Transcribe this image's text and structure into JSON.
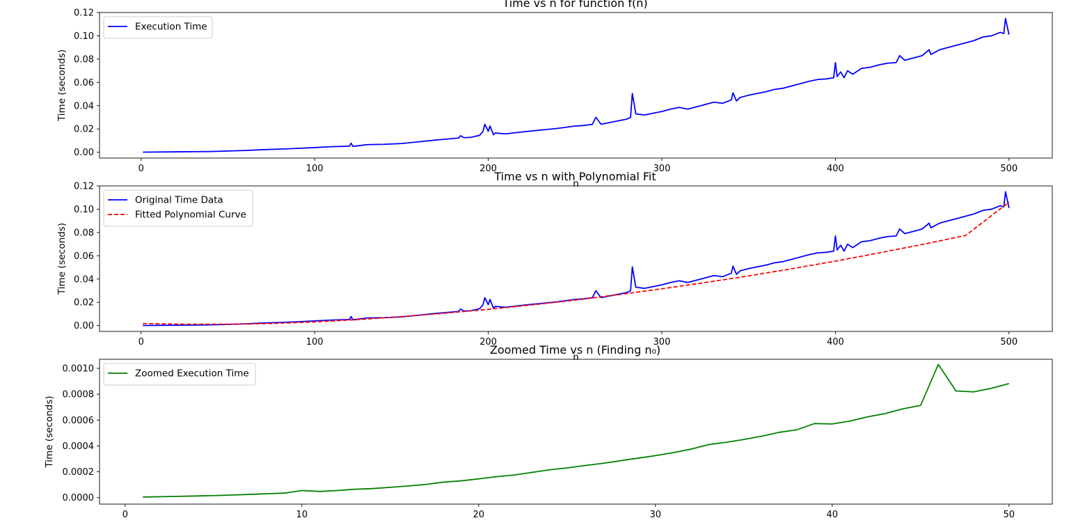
{
  "chart_data": [
    {
      "type": "line",
      "title": "Time vs n for function f(n)",
      "xlabel": "n",
      "ylabel": "Time (seconds)",
      "xlim": [
        -23.95,
        524.95
      ],
      "ylim": [
        -0.005,
        0.12
      ],
      "xticks": [
        0,
        100,
        200,
        300,
        400,
        500
      ],
      "yticks": [
        0.0,
        0.02,
        0.04,
        0.06,
        0.08,
        0.1,
        0.12
      ],
      "ytick_labels": [
        "0.00",
        "0.02",
        "0.04",
        "0.06",
        "0.08",
        "0.10",
        "0.12"
      ],
      "grid": false,
      "legend_position": "top-left",
      "series": [
        {
          "name": "Execution Time",
          "color": "#0000ff",
          "style": "solid",
          "x": [
            1,
            40,
            60,
            70,
            80,
            90,
            100,
            110,
            120,
            121,
            122,
            130,
            140,
            150,
            160,
            170,
            180,
            183,
            184,
            186,
            190,
            195,
            197,
            198,
            200,
            201,
            203,
            204,
            210,
            220,
            230,
            240,
            250,
            255,
            260,
            262,
            265,
            270,
            275,
            280,
            282,
            283,
            285,
            290,
            295,
            300,
            305,
            310,
            315,
            320,
            325,
            330,
            335,
            340,
            341,
            343,
            345,
            350,
            355,
            360,
            365,
            370,
            375,
            380,
            385,
            390,
            395,
            399,
            400,
            401,
            403,
            405,
            407,
            410,
            415,
            420,
            425,
            430,
            435,
            437,
            440,
            445,
            450,
            454,
            455,
            460,
            465,
            470,
            475,
            480,
            485,
            490,
            495,
            497,
            498,
            500
          ],
          "y": [
            0.0001,
            0.0006,
            0.0015,
            0.0022,
            0.0027,
            0.0033,
            0.004,
            0.0048,
            0.0052,
            0.0078,
            0.005,
            0.0065,
            0.0068,
            0.0075,
            0.009,
            0.0105,
            0.0118,
            0.0122,
            0.0142,
            0.0125,
            0.0128,
            0.0145,
            0.018,
            0.024,
            0.018,
            0.0225,
            0.015,
            0.0165,
            0.0158,
            0.0175,
            0.019,
            0.0205,
            0.0225,
            0.023,
            0.024,
            0.03,
            0.024,
            0.0255,
            0.027,
            0.0285,
            0.03,
            0.0505,
            0.033,
            0.032,
            0.0335,
            0.035,
            0.037,
            0.0385,
            0.037,
            0.039,
            0.041,
            0.043,
            0.042,
            0.045,
            0.051,
            0.044,
            0.047,
            0.049,
            0.0505,
            0.052,
            0.054,
            0.055,
            0.057,
            0.059,
            0.061,
            0.0625,
            0.063,
            0.064,
            0.077,
            0.065,
            0.069,
            0.064,
            0.07,
            0.067,
            0.072,
            0.073,
            0.075,
            0.0765,
            0.077,
            0.083,
            0.079,
            0.081,
            0.083,
            0.088,
            0.084,
            0.088,
            0.09,
            0.092,
            0.094,
            0.096,
            0.099,
            0.1,
            0.103,
            0.102,
            0.115,
            0.101
          ]
        }
      ]
    },
    {
      "type": "line",
      "title": "Time vs n with Polynomial Fit",
      "xlabel": "n",
      "ylabel": "Time (seconds)",
      "xlim": [
        -23.95,
        524.95
      ],
      "ylim": [
        -0.005,
        0.12
      ],
      "xticks": [
        0,
        100,
        200,
        300,
        400,
        500
      ],
      "yticks": [
        0.0,
        0.02,
        0.04,
        0.06,
        0.08,
        0.1,
        0.12
      ],
      "ytick_labels": [
        "0.00",
        "0.02",
        "0.04",
        "0.06",
        "0.08",
        "0.10",
        "0.12"
      ],
      "grid": false,
      "legend_position": "top-left",
      "series": [
        {
          "name": "Original Time Data",
          "color": "#0000ff",
          "style": "solid",
          "x": [
            1,
            40,
            60,
            70,
            80,
            90,
            100,
            110,
            120,
            121,
            122,
            130,
            140,
            150,
            160,
            170,
            180,
            183,
            184,
            186,
            190,
            195,
            197,
            198,
            200,
            201,
            203,
            204,
            210,
            220,
            230,
            240,
            250,
            255,
            260,
            262,
            265,
            270,
            275,
            280,
            282,
            283,
            285,
            290,
            295,
            300,
            305,
            310,
            315,
            320,
            325,
            330,
            335,
            340,
            341,
            343,
            345,
            350,
            355,
            360,
            365,
            370,
            375,
            380,
            385,
            390,
            395,
            399,
            400,
            401,
            403,
            405,
            407,
            410,
            415,
            420,
            425,
            430,
            435,
            437,
            440,
            445,
            450,
            454,
            455,
            460,
            465,
            470,
            475,
            480,
            485,
            490,
            495,
            497,
            498,
            500
          ],
          "y": [
            0.0001,
            0.0006,
            0.0015,
            0.0022,
            0.0027,
            0.0033,
            0.004,
            0.0048,
            0.0052,
            0.0078,
            0.005,
            0.0065,
            0.0068,
            0.0075,
            0.009,
            0.0105,
            0.0118,
            0.0122,
            0.0142,
            0.0125,
            0.0128,
            0.0145,
            0.018,
            0.024,
            0.018,
            0.0225,
            0.015,
            0.0165,
            0.0158,
            0.0175,
            0.019,
            0.0205,
            0.0225,
            0.023,
            0.024,
            0.03,
            0.024,
            0.0255,
            0.027,
            0.0285,
            0.03,
            0.0505,
            0.033,
            0.032,
            0.0335,
            0.035,
            0.037,
            0.0385,
            0.037,
            0.039,
            0.041,
            0.043,
            0.042,
            0.045,
            0.051,
            0.044,
            0.047,
            0.049,
            0.0505,
            0.052,
            0.054,
            0.055,
            0.057,
            0.059,
            0.061,
            0.0625,
            0.063,
            0.064,
            0.077,
            0.065,
            0.069,
            0.064,
            0.07,
            0.067,
            0.072,
            0.073,
            0.075,
            0.0765,
            0.077,
            0.083,
            0.079,
            0.081,
            0.083,
            0.088,
            0.084,
            0.088,
            0.09,
            0.092,
            0.094,
            0.096,
            0.099,
            0.1,
            0.103,
            0.102,
            0.115,
            0.101
          ]
        },
        {
          "name": "Fitted Polynomial Curve",
          "color": "#ff0000",
          "style": "dashed",
          "x": [
            1,
            25,
            50,
            75,
            100,
            125,
            150,
            175,
            200,
            225,
            250,
            275,
            300,
            325,
            350,
            375,
            400,
            425,
            450,
            475,
            500
          ],
          "y": [
            0.0018,
            0.0012,
            0.0012,
            0.0018,
            0.0032,
            0.0052,
            0.0077,
            0.0107,
            0.014,
            0.0178,
            0.0219,
            0.0266,
            0.0316,
            0.037,
            0.0427,
            0.0489,
            0.0554,
            0.0624,
            0.0697,
            0.0774,
            0.106
          ]
        }
      ]
    },
    {
      "type": "line",
      "title": "Zoomed Time vs n (Finding n₀)",
      "xlabel": "",
      "ylabel": "Time (seconds)",
      "xlim": [
        -1.45,
        52.45
      ],
      "ylim": [
        -5e-05,
        0.00107
      ],
      "xticks": [
        0,
        10,
        20,
        30,
        40,
        50
      ],
      "yticks": [
        0.0,
        0.0002,
        0.0004,
        0.0006,
        0.0008,
        0.001
      ],
      "ytick_labels": [
        "0.0000",
        "0.0002",
        "0.0004",
        "0.0006",
        "0.0008",
        "0.0010"
      ],
      "grid": false,
      "legend_position": "top-left",
      "series": [
        {
          "name": "Zoomed Execution Time",
          "color": "#008000",
          "style": "solid",
          "x": [
            1,
            2,
            3,
            4,
            5,
            6,
            7,
            8,
            9,
            10,
            11,
            12,
            13,
            14,
            15,
            16,
            17,
            18,
            19,
            20,
            21,
            22,
            23,
            24,
            25,
            26,
            27,
            28,
            29,
            30,
            31,
            32,
            33,
            34,
            35,
            36,
            37,
            38,
            39,
            40,
            41,
            42,
            43,
            44,
            45,
            46,
            47,
            48,
            49,
            50
          ],
          "y": [
            5e-06,
            7e-06,
            1e-05,
            1.3e-05,
            1.6e-05,
            2e-05,
            2.5e-05,
            3e-05,
            3.5e-05,
            5.5e-05,
            4.8e-05,
            5.5e-05,
            6.5e-05,
            7e-05,
            8e-05,
            9e-05,
            0.000102,
            0.00012,
            0.00013,
            0.000145,
            0.000162,
            0.000175,
            0.000195,
            0.000215,
            0.00023,
            0.000248,
            0.000265,
            0.000285,
            0.000305,
            0.000325,
            0.000348,
            0.000375,
            0.00041,
            0.000428,
            0.00045,
            0.000475,
            0.000505,
            0.000525,
            0.000573,
            0.00057,
            0.000592,
            0.000625,
            0.00065,
            0.000687,
            0.000713,
            0.00103,
            0.000825,
            0.000818,
            0.000845,
            0.000882
          ]
        }
      ]
    }
  ]
}
